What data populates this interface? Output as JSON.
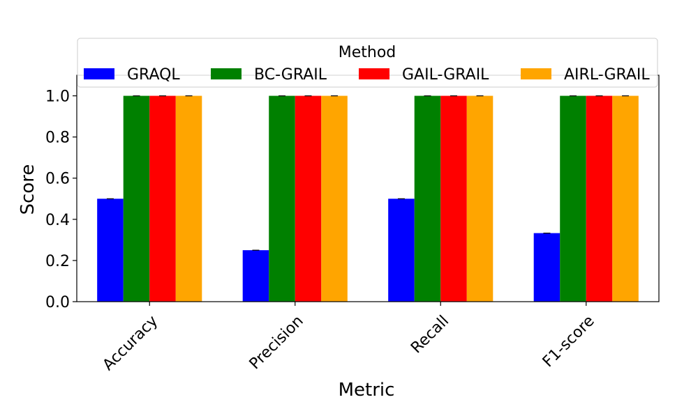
{
  "chart_data": {
    "type": "bar",
    "title": "",
    "xlabel": "Metric",
    "ylabel": "Score",
    "categories": [
      "Accuracy",
      "Precision",
      "Recall",
      "F1-score"
    ],
    "ylim": [
      0,
      1.1
    ],
    "yticks": [
      0.0,
      0.2,
      0.4,
      0.6,
      0.8,
      1.0
    ],
    "ytick_labels": [
      "0.0",
      "0.2",
      "0.4",
      "0.6",
      "0.8",
      "1.0"
    ],
    "grid": false,
    "legend": {
      "title": "Method",
      "placement": "top-center",
      "columns": 4
    },
    "error_bars": true,
    "series": [
      {
        "name": "GRAQL",
        "color": "#0000ff",
        "values": [
          0.5,
          0.25,
          0.5,
          0.333
        ]
      },
      {
        "name": "BC-GRAIL",
        "color": "#008000",
        "values": [
          1.0,
          1.0,
          1.0,
          1.0
        ]
      },
      {
        "name": "GAIL-GRAIL",
        "color": "#ff0000",
        "values": [
          1.0,
          1.0,
          1.0,
          1.0
        ]
      },
      {
        "name": "AIRL-GRAIL",
        "color": "#ffa500",
        "values": [
          1.0,
          1.0,
          1.0,
          1.0
        ]
      }
    ]
  }
}
